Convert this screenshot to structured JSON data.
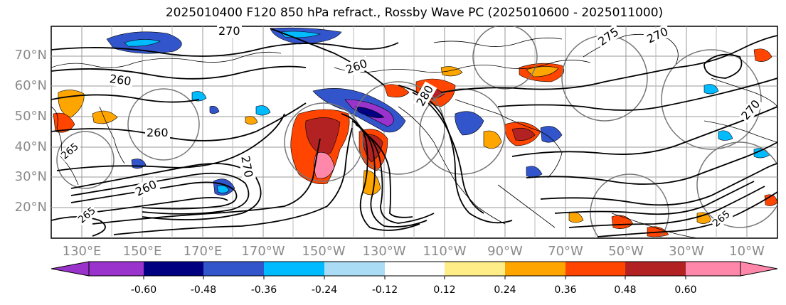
{
  "title": "2025010400 F120 850 hPa refract., Rossby Wave PC (2025010600 - 2025011000)",
  "map": {
    "lat_labels": [
      "70°N",
      "60°N",
      "50°N",
      "40°N",
      "30°N",
      "20°N"
    ],
    "lat_values": [
      70,
      60,
      50,
      40,
      30,
      20
    ],
    "lat_range": [
      10,
      80
    ],
    "lon_labels": [
      "130°E",
      "150°E",
      "170°E",
      "170°W",
      "150°W",
      "130°W",
      "110°W",
      "90°W",
      "70°W",
      "50°W",
      "30°W",
      "10°W"
    ],
    "lon_range_label": [
      "120°E",
      "10°W"
    ],
    "contour_labels": [
      "270",
      "260",
      "260",
      "260",
      "270",
      "275",
      "270",
      "260",
      "280",
      "270",
      "265",
      "265",
      "265"
    ],
    "contour_color": "#000000"
  },
  "colorbar": {
    "ticks": [
      "-0.60",
      "-0.48",
      "-0.36",
      "-0.24",
      "-0.12",
      "0.12",
      "0.24",
      "0.36",
      "0.48",
      "0.60"
    ],
    "colors": [
      "#9933cc",
      "#000080",
      "#3355cc",
      "#00bbff",
      "#aaddf5",
      "#ffffff",
      "#ffee88",
      "#ffa500",
      "#ff4500",
      "#b22222",
      "#ff88aa",
      "#ff88aa"
    ]
  }
}
